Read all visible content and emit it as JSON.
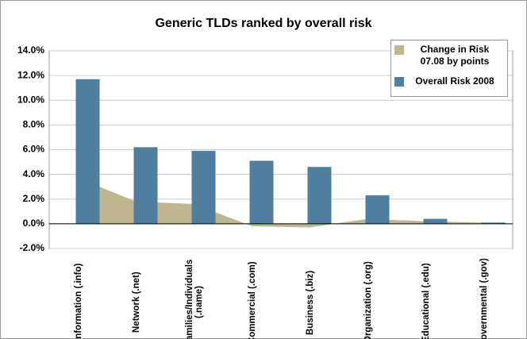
{
  "chart_data": {
    "type": "bar-area",
    "title": "Generic TLDs ranked by overall risk",
    "categories": [
      "Information (.info)",
      "Network (.net)",
      "Families/Individuals (.name)",
      "Commercial (.com)",
      "Business (.biz)",
      "Organization (.org)",
      "Educational (.edu)",
      "Governmental (.gov)"
    ],
    "series": [
      {
        "name": "Change in Risk 07.08 by points",
        "type": "area",
        "color": "#bfb690",
        "values": [
          3.7,
          1.8,
          1.6,
          -0.2,
          -0.3,
          0.4,
          0.2,
          0.1
        ]
      },
      {
        "name": "Overall Risk 2008",
        "type": "bar",
        "color": "#507e9e",
        "values": [
          11.7,
          6.2,
          5.9,
          5.1,
          4.6,
          2.3,
          0.4,
          0.1
        ]
      }
    ],
    "ylim": [
      -2,
      14
    ],
    "yticks": [
      {
        "value": -2,
        "label": "-2.0%"
      },
      {
        "value": 0,
        "label": "0.0%"
      },
      {
        "value": 2,
        "label": "2.0%"
      },
      {
        "value": 4,
        "label": "4.0%"
      },
      {
        "value": 6,
        "label": "6.0%"
      },
      {
        "value": 8,
        "label": "8.0%"
      },
      {
        "value": 10,
        "label": "10.0%"
      },
      {
        "value": 12,
        "label": "12.0%"
      },
      {
        "value": 14,
        "label": "14.0%"
      }
    ],
    "legend": "top-right"
  }
}
